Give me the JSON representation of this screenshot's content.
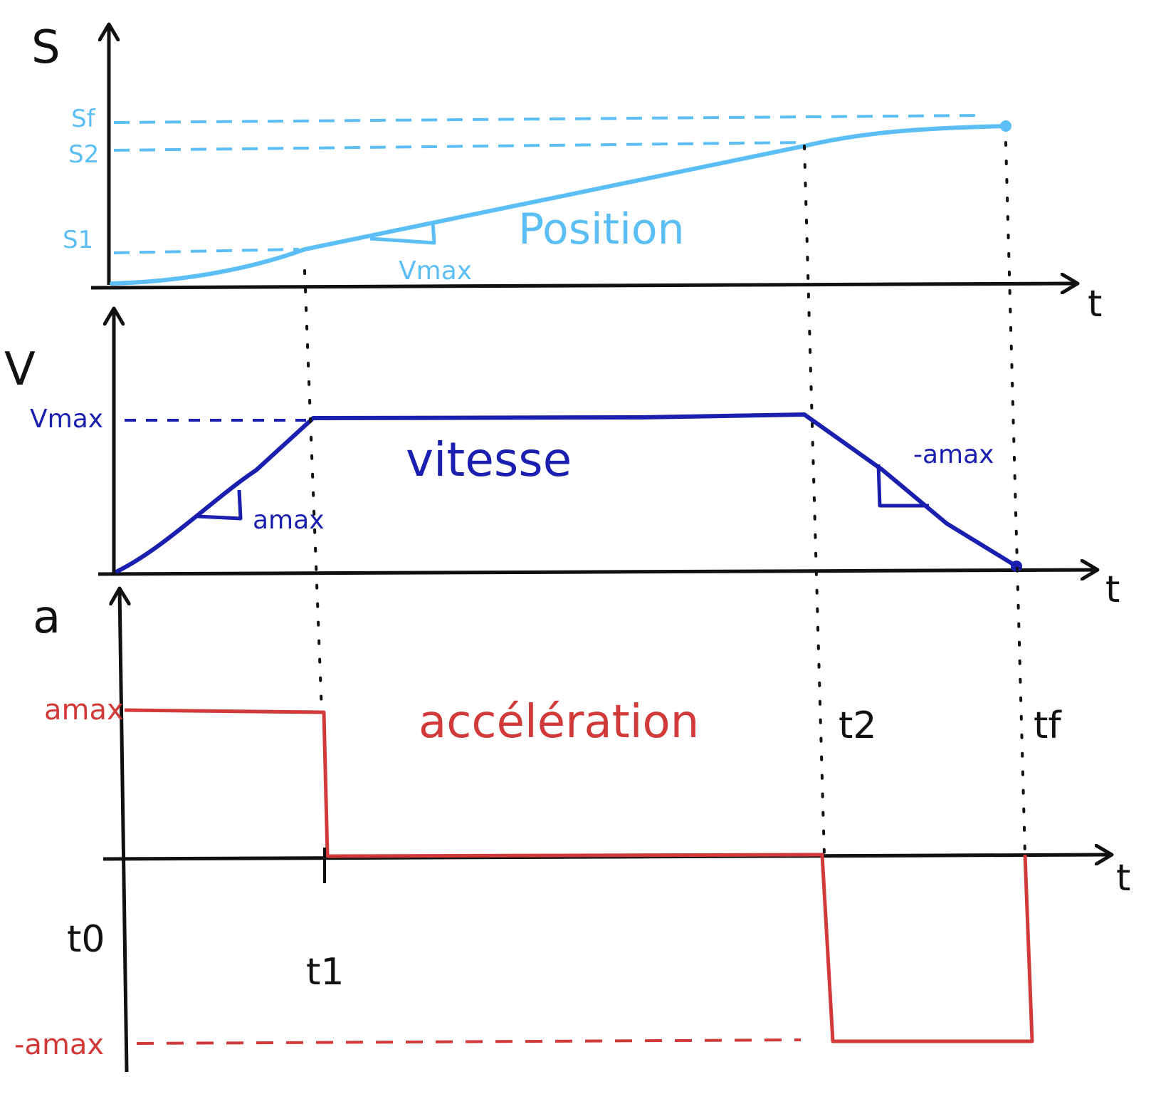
{
  "colors": {
    "ink": "#111111",
    "position": "#5BBEF5",
    "velocity": "#1A1FB0",
    "acceleration": "#D23A3A"
  },
  "position_graph": {
    "axis_label": "S",
    "x_axis_label": "t",
    "curve_label": "Position",
    "slope_label": "Vmax",
    "levels": [
      "Sf",
      "S2",
      "S1"
    ]
  },
  "velocity_graph": {
    "axis_label": "V",
    "x_axis_label": "t",
    "curve_label": "vitesse",
    "level_label": "Vmax",
    "slope_up_label": "amax",
    "slope_down_label": "-amax"
  },
  "acceleration_graph": {
    "axis_label": "a",
    "x_axis_label": "t",
    "curve_label": "accélération",
    "high_label": "amax",
    "low_label": "-amax"
  },
  "time_marks": {
    "t0": "t0",
    "t1": "t1",
    "t2": "t2",
    "tf": "tf"
  },
  "icons": [
    "arrow-up-icon",
    "arrow-right-icon"
  ]
}
